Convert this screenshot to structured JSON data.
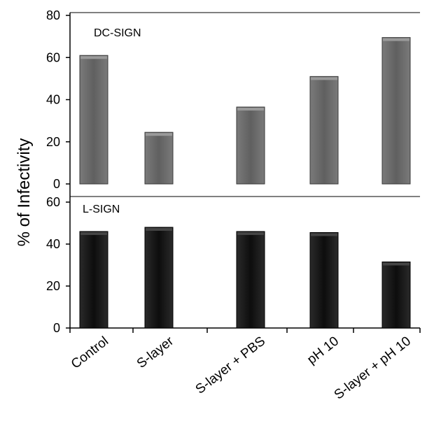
{
  "chart_data": [
    {
      "type": "bar",
      "panel_label": "DC-SIGN",
      "categories": [
        "Control",
        "S-layer",
        "S-layer + PBS",
        "pH 10",
        "S-layer + pH 10"
      ],
      "values": [
        61,
        24.5,
        36.5,
        51,
        69.5
      ],
      "ylim": [
        0,
        80
      ],
      "yticks": [
        "0",
        "20",
        "40",
        "60",
        "80"
      ],
      "bar_color": "#606060"
    },
    {
      "type": "bar",
      "panel_label": "L-SIGN",
      "categories": [
        "Control",
        "S-layer",
        "S-layer + PBS",
        "pH 10",
        "S-layer + pH 10"
      ],
      "values": [
        46,
        48,
        46,
        45.5,
        31.5
      ],
      "ylim": [
        0,
        60
      ],
      "yticks": [
        "0",
        "20",
        "40",
        "60"
      ],
      "bar_color": "#0d0d0d"
    }
  ],
  "ylabel": "% of Infectivity",
  "categories": [
    "Control",
    "S-layer",
    "S-layer + PBS",
    "pH 10",
    "S-layer + pH 10"
  ]
}
